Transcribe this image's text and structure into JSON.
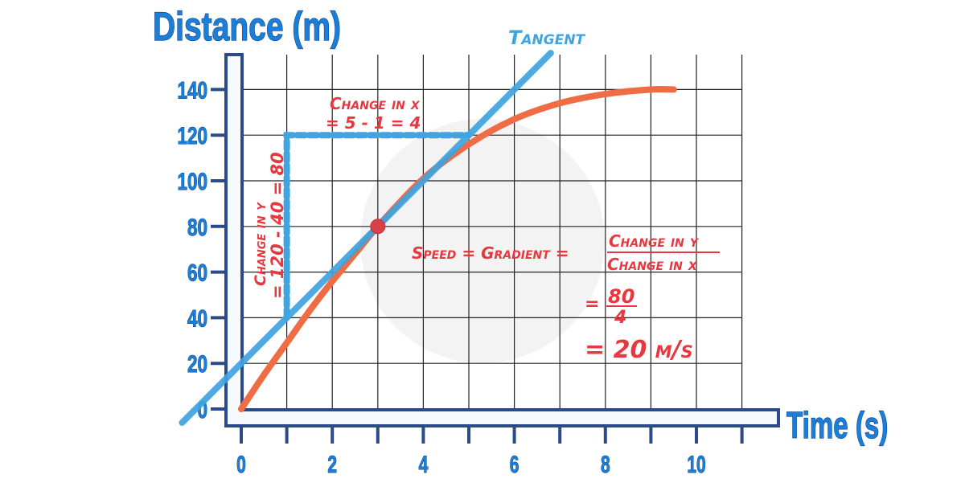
{
  "chart_data": {
    "type": "line",
    "xlabel": "Time (s)",
    "ylabel": "Distance (m)",
    "xlim": [
      0,
      11
    ],
    "ylim": [
      0,
      155
    ],
    "x_ticks": [
      0,
      2,
      4,
      6,
      8,
      10
    ],
    "y_ticks": [
      0,
      20,
      40,
      60,
      80,
      100,
      120,
      140
    ],
    "grid": true,
    "series": [
      {
        "x": [
          0,
          0.5,
          1,
          1.5,
          2,
          2.5,
          3,
          4,
          5,
          6,
          7,
          8,
          9,
          9.5
        ],
        "y": [
          0,
          15,
          29,
          43,
          56,
          68,
          80,
          101,
          116,
          127,
          134,
          138,
          140,
          140
        ],
        "color": "#ef6c45"
      }
    ],
    "tangent": {
      "label": "Tangent",
      "slope": 20,
      "intercept": 20,
      "x_range": [
        -1.3,
        6.8
      ],
      "color": "#3fa4e0",
      "point": {
        "x": 3,
        "y": 80,
        "color": "#d9414a"
      }
    },
    "triangle": {
      "x1": 1,
      "x2": 5,
      "y1": 40,
      "y2": 120,
      "color": "#3fa4e0"
    },
    "annotations": {
      "change_x_title": "Change in x",
      "change_x_calc": "= 5 - 1 = 4",
      "change_y_title": "Change in y",
      "change_y_calc": "= 120 - 40 = 80",
      "speed_eq": "Speed = Gradient =",
      "frac_num": "Change in y",
      "frac_den": "Change in x",
      "eq_sign": "=",
      "num": "80",
      "den": "4",
      "result": "= 20 m/s"
    },
    "colors": {
      "axis": "#2a4a8c",
      "text_blue": "#1a7fd8",
      "annotation": "#e8383f"
    }
  }
}
